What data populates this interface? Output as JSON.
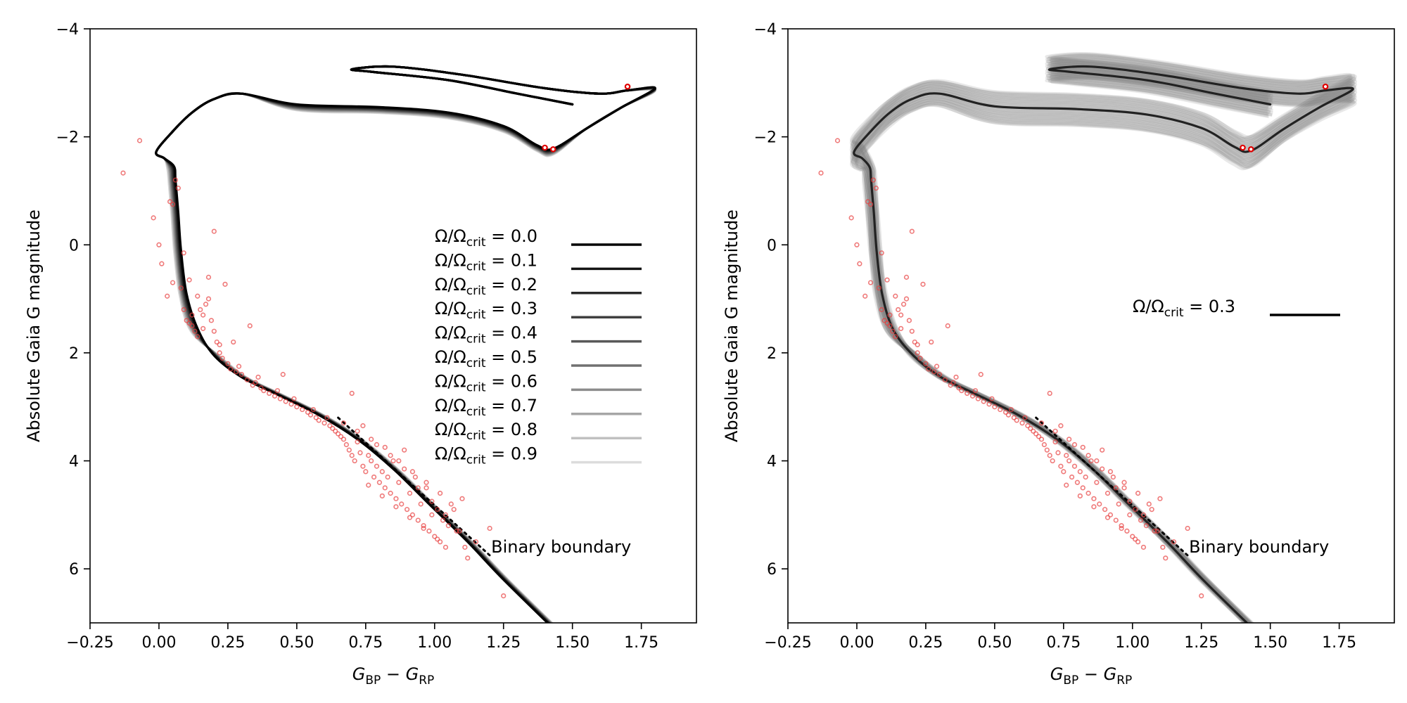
{
  "chart_data": [
    {
      "type": "line",
      "panel": "left",
      "xlabel": {
        "main": "G",
        "sub1": "BP",
        "op": " − ",
        "main2": "G",
        "sub2": "RP"
      },
      "ylabel": "Absolute Gaia G magnitude",
      "xlim": [
        -0.25,
        1.95
      ],
      "ylim": [
        7,
        -4
      ],
      "xticks": [
        -0.25,
        0.0,
        0.25,
        0.5,
        0.75,
        1.0,
        1.25,
        1.5,
        1.75
      ],
      "xtick_labels": [
        "−0.25",
        "0.00",
        "0.25",
        "0.50",
        "0.75",
        "1.00",
        "1.25",
        "1.50",
        "1.75"
      ],
      "yticks": [
        -4,
        -2,
        0,
        2,
        4,
        6
      ],
      "ytick_labels": [
        "−4",
        "−2",
        "0",
        "2",
        "4",
        "6"
      ],
      "legend_position": "center-right",
      "series": [
        {
          "name": "Ω/Ωcrit = 0.0",
          "label_main": "Ω/Ω",
          "label_sub": "crit",
          "label_value": " = 0.0",
          "omega": 0.0,
          "color": "#000000"
        },
        {
          "name": "Ω/Ωcrit = 0.1",
          "label_main": "Ω/Ω",
          "label_sub": "crit",
          "label_value": " = 0.1",
          "omega": 0.1,
          "color": "#141414"
        },
        {
          "name": "Ω/Ωcrit = 0.2",
          "label_main": "Ω/Ω",
          "label_sub": "crit",
          "label_value": " = 0.2",
          "omega": 0.2,
          "color": "#2a2a2a"
        },
        {
          "name": "Ω/Ωcrit = 0.3",
          "label_main": "Ω/Ω",
          "label_sub": "crit",
          "label_value": " = 0.3",
          "omega": 0.3,
          "color": "#404040"
        },
        {
          "name": "Ω/Ωcrit = 0.4",
          "label_main": "Ω/Ω",
          "label_sub": "crit",
          "label_value": " = 0.4",
          "omega": 0.4,
          "color": "#585858"
        },
        {
          "name": "Ω/Ωcrit = 0.5",
          "label_main": "Ω/Ω",
          "label_sub": "crit",
          "label_value": " = 0.5",
          "omega": 0.5,
          "color": "#717171"
        },
        {
          "name": "Ω/Ωcrit = 0.6",
          "label_main": "Ω/Ω",
          "label_sub": "crit",
          "label_value": " = 0.6",
          "omega": 0.6,
          "color": "#8c8c8c"
        },
        {
          "name": "Ω/Ωcrit = 0.7",
          "label_main": "Ω/Ω",
          "label_sub": "crit",
          "label_value": " = 0.7",
          "omega": 0.7,
          "color": "#a6a6a6"
        },
        {
          "name": "Ω/Ωcrit = 0.8",
          "label_main": "Ω/Ω",
          "label_sub": "crit",
          "label_value": " = 0.8",
          "omega": 0.8,
          "color": "#c0c0c0"
        },
        {
          "name": "Ω/Ωcrit = 0.9",
          "label_main": "Ω/Ω",
          "label_sub": "crit",
          "label_value": " = 0.9",
          "omega": 0.9,
          "color": "#dcdcdc"
        }
      ],
      "binary_boundary": {
        "label": "Binary boundary",
        "x": [
          0.65,
          1.2
        ],
        "y": [
          3.2,
          5.75
        ]
      },
      "extra_points": [
        [
          1.7,
          -2.93
        ],
        [
          1.4,
          -1.8
        ],
        [
          1.43,
          -1.77
        ]
      ]
    },
    {
      "type": "line",
      "panel": "right",
      "xlabel": {
        "main": "G",
        "sub1": "BP",
        "op": " − ",
        "main2": "G",
        "sub2": "RP"
      },
      "ylabel": "Absolute Gaia G magnitude",
      "xlim": [
        -0.25,
        1.95
      ],
      "ylim": [
        7,
        -4
      ],
      "xticks": [
        -0.25,
        0.0,
        0.25,
        0.5,
        0.75,
        1.0,
        1.25,
        1.5,
        1.75
      ],
      "xtick_labels": [
        "−0.25",
        "0.00",
        "0.25",
        "0.50",
        "0.75",
        "1.00",
        "1.25",
        "1.50",
        "1.75"
      ],
      "yticks": [
        -4,
        -2,
        0,
        2,
        4,
        6
      ],
      "ytick_labels": [
        "−4",
        "−2",
        "0",
        "2",
        "4",
        "6"
      ],
      "legend_position": "center-right",
      "series": [
        {
          "name": "Ω/Ωcrit = 0.3",
          "label_main": "Ω/Ω",
          "label_sub": "crit",
          "label_value": " = 0.3",
          "omega": 0.3,
          "color": "#000000"
        }
      ],
      "band_color": "#808080",
      "binary_boundary": {
        "label": "Binary boundary",
        "x": [
          0.65,
          1.2
        ],
        "y": [
          3.2,
          5.75
        ]
      },
      "extra_points": [
        [
          1.7,
          -2.93
        ],
        [
          1.4,
          -1.8
        ],
        [
          1.43,
          -1.77
        ]
      ]
    }
  ],
  "data_points": {
    "color": "#e84040",
    "points": [
      [
        -0.13,
        -1.33
      ],
      [
        -0.07,
        -1.93
      ],
      [
        -0.02,
        -0.5
      ],
      [
        0.0,
        0.0
      ],
      [
        0.01,
        0.35
      ],
      [
        0.04,
        -0.8
      ],
      [
        0.05,
        0.7
      ],
      [
        0.06,
        -1.2
      ],
      [
        0.08,
        0.8
      ],
      [
        0.09,
        1.2
      ],
      [
        0.1,
        1.4
      ],
      [
        0.11,
        1.45
      ],
      [
        0.12,
        1.3
      ],
      [
        0.12,
        1.5
      ],
      [
        0.13,
        1.6
      ],
      [
        0.14,
        1.7
      ],
      [
        0.15,
        1.2
      ],
      [
        0.16,
        1.3
      ],
      [
        0.17,
        1.1
      ],
      [
        0.18,
        1.0
      ],
      [
        0.19,
        1.4
      ],
      [
        0.2,
        1.6
      ],
      [
        0.21,
        1.8
      ],
      [
        0.22,
        2.0
      ],
      [
        0.23,
        2.1
      ],
      [
        0.24,
        0.73
      ],
      [
        0.25,
        2.2
      ],
      [
        0.26,
        2.3
      ],
      [
        0.28,
        2.35
      ],
      [
        0.3,
        2.4
      ],
      [
        0.32,
        2.5
      ],
      [
        0.34,
        2.6
      ],
      [
        0.35,
        2.55
      ],
      [
        0.37,
        2.65
      ],
      [
        0.38,
        2.7
      ],
      [
        0.4,
        2.75
      ],
      [
        0.42,
        2.8
      ],
      [
        0.44,
        2.85
      ],
      [
        0.45,
        2.4
      ],
      [
        0.46,
        2.9
      ],
      [
        0.48,
        2.95
      ],
      [
        0.5,
        3.0
      ],
      [
        0.52,
        3.05
      ],
      [
        0.54,
        3.1
      ],
      [
        0.55,
        3.15
      ],
      [
        0.57,
        3.2
      ],
      [
        0.58,
        3.25
      ],
      [
        0.6,
        3.3
      ],
      [
        0.62,
        3.35
      ],
      [
        0.63,
        3.4
      ],
      [
        0.64,
        3.45
      ],
      [
        0.65,
        3.5
      ],
      [
        0.66,
        3.55
      ],
      [
        0.67,
        3.6
      ],
      [
        0.68,
        3.7
      ],
      [
        0.69,
        3.8
      ],
      [
        0.7,
        2.75
      ],
      [
        0.7,
        3.9
      ],
      [
        0.71,
        4.0
      ],
      [
        0.72,
        3.65
      ],
      [
        0.73,
        3.85
      ],
      [
        0.74,
        4.1
      ],
      [
        0.75,
        4.2
      ],
      [
        0.76,
        3.9
      ],
      [
        0.77,
        4.0
      ],
      [
        0.78,
        4.3
      ],
      [
        0.79,
        4.1
      ],
      [
        0.8,
        4.4
      ],
      [
        0.81,
        4.2
      ],
      [
        0.82,
        4.5
      ],
      [
        0.83,
        4.3
      ],
      [
        0.84,
        4.6
      ],
      [
        0.85,
        4.0
      ],
      [
        0.86,
        4.7
      ],
      [
        0.87,
        4.4
      ],
      [
        0.88,
        4.8
      ],
      [
        0.89,
        3.8
      ],
      [
        0.9,
        4.9
      ],
      [
        0.91,
        4.6
      ],
      [
        0.92,
        5.0
      ],
      [
        0.93,
        4.3
      ],
      [
        0.94,
        5.1
      ],
      [
        0.95,
        4.8
      ],
      [
        0.96,
        5.2
      ],
      [
        0.97,
        4.5
      ],
      [
        0.98,
        5.3
      ],
      [
        0.99,
        5.0
      ],
      [
        1.0,
        5.4
      ],
      [
        1.01,
        4.9
      ],
      [
        1.02,
        5.5
      ],
      [
        1.03,
        5.1
      ],
      [
        1.04,
        5.6
      ],
      [
        1.05,
        5.2
      ],
      [
        1.06,
        4.8
      ],
      [
        1.08,
        5.3
      ],
      [
        1.1,
        4.7
      ],
      [
        1.11,
        5.6
      ],
      [
        1.12,
        5.8
      ],
      [
        1.15,
        5.5
      ],
      [
        1.2,
        5.25
      ],
      [
        1.25,
        6.5
      ],
      [
        0.2,
        -0.25
      ],
      [
        0.05,
        -0.75
      ],
      [
        0.09,
        0.15
      ],
      [
        0.14,
        0.95
      ],
      [
        0.18,
        0.6
      ],
      [
        0.27,
        1.8
      ],
      [
        0.33,
        1.5
      ],
      [
        0.03,
        0.95
      ],
      [
        0.07,
        -1.05
      ],
      [
        0.11,
        0.65
      ],
      [
        0.16,
        1.55
      ],
      [
        0.22,
        1.85
      ],
      [
        0.29,
        2.25
      ],
      [
        0.36,
        2.45
      ],
      [
        0.43,
        2.7
      ],
      [
        0.49,
        2.85
      ],
      [
        0.56,
        3.05
      ],
      [
        0.61,
        3.2
      ],
      [
        0.67,
        3.3
      ],
      [
        0.72,
        3.45
      ],
      [
        0.77,
        3.6
      ],
      [
        0.82,
        3.75
      ],
      [
        0.87,
        4.0
      ],
      [
        0.92,
        4.2
      ],
      [
        0.97,
        4.4
      ],
      [
        1.02,
        4.6
      ],
      [
        1.07,
        4.9
      ],
      [
        0.74,
        3.35
      ],
      [
        0.79,
        3.7
      ],
      [
        0.84,
        3.9
      ],
      [
        0.89,
        4.15
      ],
      [
        0.94,
        4.5
      ],
      [
        0.99,
        4.75
      ],
      [
        1.04,
        5.0
      ],
      [
        1.09,
        5.3
      ],
      [
        0.76,
        4.45
      ],
      [
        0.81,
        4.65
      ],
      [
        0.86,
        4.85
      ],
      [
        0.91,
        5.05
      ],
      [
        0.96,
        5.25
      ],
      [
        1.01,
        5.45
      ]
    ]
  }
}
